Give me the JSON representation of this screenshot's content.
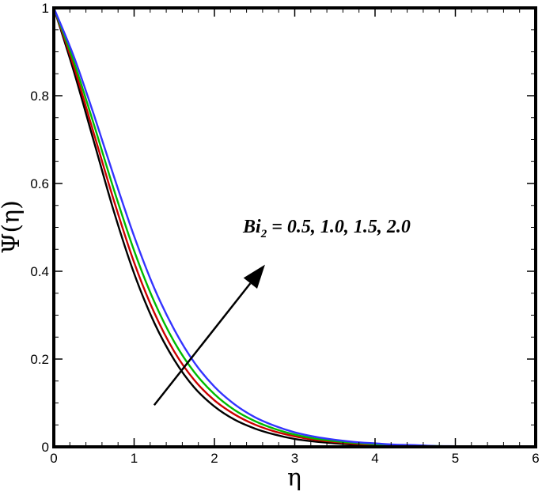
{
  "chart_data": {
    "type": "line",
    "xlabel": "η",
    "ylabel": "Ψ(η)",
    "xlim": [
      0,
      6
    ],
    "ylim": [
      0,
      1
    ],
    "x_ticks": [
      "0",
      "1",
      "2",
      "3",
      "4",
      "5",
      "6"
    ],
    "y_ticks": [
      "0",
      "0.2",
      "0.4",
      "0.6",
      "0.8",
      "1"
    ],
    "grid": false,
    "x": [
      0,
      0.25,
      0.5,
      0.75,
      1.0,
      1.25,
      1.5,
      1.75,
      2.0,
      2.25,
      2.5,
      2.75,
      3.0,
      3.25,
      3.5,
      3.75,
      4.0,
      4.25,
      4.5,
      4.75,
      5.0,
      5.25,
      5.5,
      5.75,
      6.0
    ],
    "series": [
      {
        "color": "#000000",
        "values": [
          1.0,
          0.855,
          0.695,
          0.535,
          0.395,
          0.283,
          0.198,
          0.135,
          0.092,
          0.062,
          0.042,
          0.028,
          0.018,
          0.012,
          0.008,
          0.005,
          0.003,
          0.002,
          0.001,
          0.0005,
          0.0002,
          0.0001,
          0.0,
          0.0,
          0.0
        ]
      },
      {
        "color": "#cc0000",
        "values": [
          1.0,
          0.866,
          0.713,
          0.56,
          0.42,
          0.306,
          0.217,
          0.152,
          0.106,
          0.074,
          0.051,
          0.035,
          0.024,
          0.016,
          0.011,
          0.007,
          0.005,
          0.003,
          0.002,
          0.001,
          0.0005,
          0.0002,
          0.0001,
          0.0,
          0.0
        ]
      },
      {
        "color": "#00bb00",
        "values": [
          1.0,
          0.877,
          0.734,
          0.585,
          0.447,
          0.331,
          0.239,
          0.17,
          0.12,
          0.084,
          0.059,
          0.041,
          0.028,
          0.019,
          0.013,
          0.009,
          0.006,
          0.004,
          0.003,
          0.002,
          0.001,
          0.0005,
          0.0002,
          0.0001,
          0.0
        ]
      },
      {
        "color": "#3333ff",
        "values": [
          1.0,
          0.889,
          0.756,
          0.615,
          0.48,
          0.362,
          0.267,
          0.192,
          0.137,
          0.097,
          0.068,
          0.048,
          0.033,
          0.023,
          0.016,
          0.011,
          0.008,
          0.005,
          0.004,
          0.002,
          0.0015,
          0.001,
          0.0005,
          0.0002,
          0.0
        ]
      }
    ],
    "annotation": {
      "text_base": "Bi",
      "text_sub": "2",
      "text_rest": " = 0.5, 1.0, 1.5, 2.0",
      "arrow_from": [
        1.25,
        0.095
      ],
      "arrow_to": [
        2.63,
        0.415
      ]
    }
  }
}
